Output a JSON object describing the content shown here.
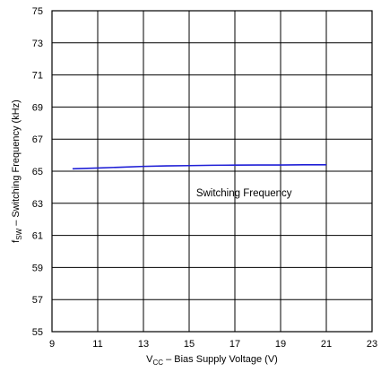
{
  "chart_data": {
    "type": "line",
    "title": "",
    "xlabel": {
      "prefix": "V",
      "sub": "CC",
      "suffix": " – Bias Supply Voltage (V)"
    },
    "ylabel": {
      "prefix": "f",
      "sub": "SW",
      "suffix": " – Switching Frequency (kHz)"
    },
    "xlim": [
      9,
      23
    ],
    "ylim": [
      55,
      75
    ],
    "xticks": [
      9,
      11,
      13,
      15,
      17,
      19,
      21,
      23
    ],
    "yticks": [
      55,
      57,
      59,
      61,
      63,
      65,
      67,
      69,
      71,
      73,
      75
    ],
    "grid": true,
    "annotation": {
      "text": "Switching Frequency",
      "x": 17.4,
      "y": 63.65
    },
    "series": [
      {
        "color": "#1f1fd6",
        "x": [
          9.9,
          11,
          12,
          13,
          14,
          15,
          16,
          17,
          18,
          19,
          20,
          21
        ],
        "y": [
          65.15,
          65.2,
          65.25,
          65.3,
          65.33,
          65.35,
          65.37,
          65.38,
          65.39,
          65.39,
          65.4,
          65.4
        ]
      }
    ]
  }
}
